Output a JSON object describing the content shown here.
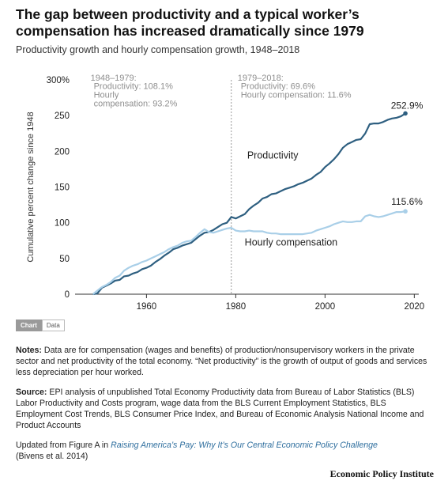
{
  "title": "The gap between productivity and a typical worker’s compensation has increased dramatically since 1979",
  "subtitle": "Productivity growth and hourly compensation growth, 1948–2018",
  "toggle": {
    "chart_label": "Chart",
    "data_label": "Data",
    "active": "Chart"
  },
  "notes": {
    "label": "Notes:",
    "text": "Data are for compensation (wages and benefits) of production/nonsupervisory workers in the private sector and net productivity of the total economy. “Net productivity” is the growth of output of goods and services less depreciation per hour worked."
  },
  "source": {
    "label": "Source:",
    "text": "EPI analysis of unpublished Total Economy Productivity data from Bureau of Labor Statistics (BLS) Labor Productivity and Costs program, wage data from the BLS Current Employment Statistics, BLS Employment Cost Trends, BLS Consumer Price Index, and Bureau of Economic Analysis National Income and Product Accounts"
  },
  "updated": {
    "prefix": "Updated from Figure A in ",
    "link": "Raising America’s Pay: Why It’s Our Central Economic Policy Challenge",
    "suffix": "(Bivens et al. 2014)"
  },
  "brand": "Economic Policy Institute",
  "colors": {
    "productivity": "#2e5f80",
    "compensation": "#a9cfe8",
    "divider": "#999999",
    "annotation": "#8f8f8f"
  },
  "chart_data": {
    "type": "line",
    "ylabel": "Cumulative percent change since 1948",
    "xlabel": "",
    "xlim": [
      1944,
      2021
    ],
    "ylim": [
      0,
      300
    ],
    "xticks": [
      "1960",
      "1980",
      "2000",
      "2020"
    ],
    "yticks": [
      "0",
      "50",
      "100",
      "150",
      "200",
      "250",
      "300%"
    ],
    "grid": false,
    "annotations": {
      "period1_title": "1948–1979:",
      "period1_prod": "Productivity: 108.1%",
      "period1_comp_a": "Hourly",
      "period1_comp_b": "compensation: 93.2%",
      "period2_title": "1979–2018:",
      "period2_prod": "Productivity: 69.6%",
      "period2_comp": "Hourly compensation: 11.6%",
      "divider_year": 1979
    },
    "series": [
      {
        "name": "Productivity",
        "end_label": "252.9%",
        "x": [
          1948,
          1949,
          1950,
          1951,
          1952,
          1953,
          1954,
          1955,
          1956,
          1957,
          1958,
          1959,
          1960,
          1961,
          1962,
          1963,
          1964,
          1965,
          1966,
          1967,
          1968,
          1969,
          1970,
          1971,
          1972,
          1973,
          1974,
          1975,
          1976,
          1977,
          1978,
          1979,
          1980,
          1981,
          1982,
          1983,
          1984,
          1985,
          1986,
          1987,
          1988,
          1989,
          1990,
          1991,
          1992,
          1993,
          1994,
          1995,
          1996,
          1997,
          1998,
          1999,
          2000,
          2001,
          2002,
          2003,
          2004,
          2005,
          2006,
          2007,
          2008,
          2009,
          2010,
          2011,
          2012,
          2013,
          2014,
          2015,
          2016,
          2017,
          2018
        ],
        "values": [
          0,
          1,
          9,
          12,
          15,
          19,
          20,
          25,
          26,
          29,
          31,
          35,
          37,
          40,
          45,
          49,
          54,
          58,
          63,
          65,
          68,
          70,
          72,
          77,
          82,
          86,
          87,
          90,
          94,
          98,
          100,
          108,
          106,
          109,
          112,
          119,
          124,
          128,
          134,
          136,
          140,
          141,
          144,
          147,
          149,
          151,
          154,
          156,
          159,
          162,
          167,
          171,
          178,
          183,
          189,
          196,
          205,
          210,
          213,
          216,
          217,
          225,
          238,
          239,
          239,
          241,
          244,
          246,
          247,
          249,
          253
        ]
      },
      {
        "name": "Hourly compensation",
        "end_label": "115.6%",
        "x": [
          1948,
          1949,
          1950,
          1951,
          1952,
          1953,
          1954,
          1955,
          1956,
          1957,
          1958,
          1959,
          1960,
          1961,
          1962,
          1963,
          1964,
          1965,
          1966,
          1967,
          1968,
          1969,
          1970,
          1971,
          1972,
          1973,
          1974,
          1975,
          1976,
          1977,
          1978,
          1979,
          1980,
          1981,
          1982,
          1983,
          1984,
          1985,
          1986,
          1987,
          1988,
          1989,
          1990,
          1991,
          1992,
          1993,
          1994,
          1995,
          1996,
          1997,
          1998,
          1999,
          2000,
          2001,
          2002,
          2003,
          2004,
          2005,
          2006,
          2007,
          2008,
          2009,
          2010,
          2011,
          2012,
          2013,
          2014,
          2015,
          2016,
          2017,
          2018
        ],
        "values": [
          0,
          5,
          10,
          13,
          17,
          23,
          26,
          33,
          37,
          40,
          42,
          45,
          47,
          50,
          53,
          56,
          59,
          63,
          66,
          68,
          72,
          74,
          75,
          80,
          86,
          91,
          87,
          86,
          88,
          90,
          92,
          93,
          89,
          88,
          88,
          89,
          88,
          88,
          88,
          86,
          85,
          85,
          84,
          84,
          84,
          84,
          84,
          84,
          85,
          86,
          89,
          91,
          93,
          95,
          98,
          100,
          102,
          101,
          101,
          102,
          102,
          109,
          111,
          109,
          108,
          109,
          111,
          113,
          115,
          115,
          116
        ]
      }
    ]
  }
}
